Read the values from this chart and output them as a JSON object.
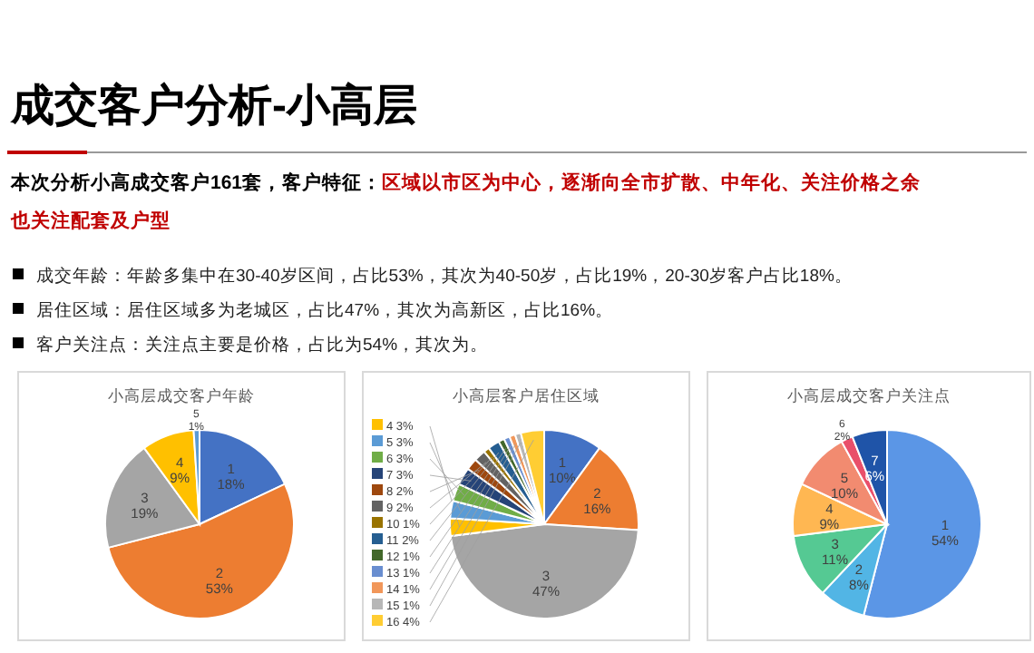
{
  "chart_data": [
    {
      "type": "other",
      "title": "成交客户分析-小高层",
      "subtitle": "本次分析小高成交客户161套，客户特征：",
      "annotations": [
        "区域以市区为中心，逐渐向全市扩散、中年化、关注价格之余也关注配套及户型",
        "成交年龄：年龄多集中在30-40岁区间，占比53%，其次为40-50岁，占比19%，20-30岁客户占比18%。",
        "居住区域：居住区域多为老城区，占比47%，其次为高新区，占比16%。",
        "客户关注点：关注点主要是价格，占比为54%，其次为。"
      ]
    },
    {
      "type": "pie",
      "title": "小高层成交客户年龄",
      "categories": [
        "1",
        "2",
        "3",
        "4",
        "5"
      ],
      "values": [
        18,
        53,
        19,
        9,
        1
      ],
      "value_labels": [
        "18%",
        "53%",
        "19%",
        "9%",
        "1%"
      ],
      "colors": [
        "#4472c4",
        "#ed7d31",
        "#a5a5a5",
        "#ffc000",
        "#5b9bd5"
      ]
    },
    {
      "type": "pie",
      "title": "小高层客户居住区域",
      "categories": [
        "1",
        "2",
        "3",
        "4",
        "5",
        "6",
        "7",
        "8",
        "9",
        "10",
        "11",
        "12",
        "13",
        "14",
        "15",
        "16"
      ],
      "values": [
        10,
        16,
        47,
        3,
        3,
        3,
        3,
        2,
        2,
        1,
        2,
        1,
        1,
        1,
        1,
        4
      ],
      "value_labels": [
        "10%",
        "16%",
        "47%",
        "3%",
        "3%",
        "3%",
        "3%",
        "2%",
        "2%",
        "1%",
        "2%",
        "1%",
        "1%",
        "1%",
        "1%",
        "4%"
      ],
      "colors": [
        "#4472c4",
        "#ed7d31",
        "#a5a5a5",
        "#ffc000",
        "#5b9bd5",
        "#70ad47",
        "#264478",
        "#9e480e",
        "#636363",
        "#997300",
        "#255e91",
        "#43682b",
        "#698ed0",
        "#f1975a",
        "#b7b7b7",
        "#ffcd33"
      ],
      "legend": "left"
    },
    {
      "type": "pie",
      "title": "小高层成交客户关注点",
      "categories": [
        "1",
        "2",
        "3",
        "4",
        "5",
        "6",
        "7"
      ],
      "values": [
        54,
        8,
        11,
        9,
        10,
        2,
        6
      ],
      "value_labels": [
        "54%",
        "8%",
        "11%",
        "9%",
        "10%",
        "2%",
        "6%"
      ],
      "colors": [
        "#5b96e6",
        "#52b5e5",
        "#55c993",
        "#ffb752",
        "#f28b70",
        "#e94f6a",
        "#1f54a8"
      ]
    }
  ]
}
